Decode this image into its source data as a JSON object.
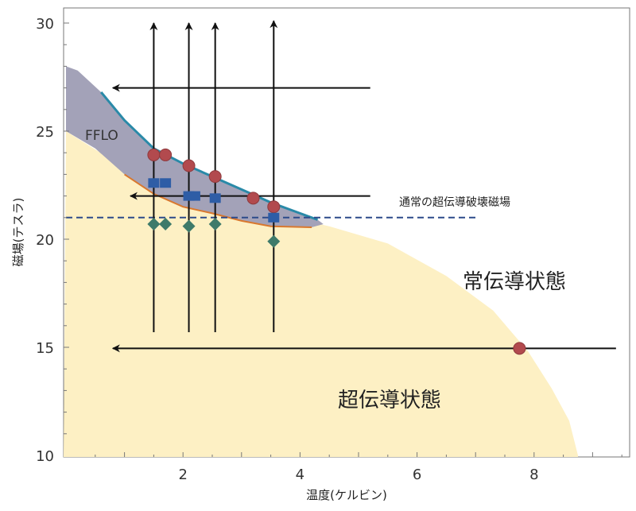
{
  "chart_data": {
    "type": "scatter",
    "xlabel": "温度(ケルビン)",
    "ylabel": "磁場(テスラ)",
    "xlim": [
      0,
      9.5
    ],
    "ylim": [
      10,
      30.5
    ],
    "xticks": [
      2,
      4,
      6,
      8
    ],
    "yticks": [
      10,
      15,
      20,
      25,
      30
    ],
    "colors": {
      "superconducting": "#fdf0c4",
      "ffl_region": "#a3a2b8",
      "upper_boundary": "#2a8aa8",
      "lower_boundary": "#d9782e",
      "circle": "#b24a4e",
      "square": "#2e5da6",
      "diamond": "#3e7a6a",
      "arrow": "#111111",
      "dashed": "#2c4a8a"
    },
    "superconducting_boundary": [
      [
        0,
        25
      ],
      [
        1,
        23.3
      ],
      [
        2,
        22.1
      ],
      [
        3,
        21.4
      ],
      [
        4,
        20.9
      ],
      [
        4.5,
        20.6
      ],
      [
        5.5,
        19.8
      ],
      [
        6.5,
        18.3
      ],
      [
        7.3,
        16.7
      ],
      [
        7.9,
        14.8
      ],
      [
        8.3,
        13.1
      ],
      [
        8.6,
        11.6
      ],
      [
        8.75,
        10
      ]
    ],
    "ffl_region": {
      "upper": [
        [
          0,
          28.0
        ],
        [
          0.2,
          27.8
        ],
        [
          0.6,
          26.8
        ],
        [
          1,
          25.5
        ],
        [
          1.5,
          24.2
        ],
        [
          2,
          23.5
        ],
        [
          2.5,
          22.9
        ],
        [
          3,
          22.3
        ],
        [
          3.5,
          21.7
        ],
        [
          4,
          21.2
        ],
        [
          4.3,
          20.9
        ]
      ],
      "lower": [
        [
          4.4,
          20.7
        ],
        [
          4.2,
          20.55
        ],
        [
          3.5,
          20.6
        ],
        [
          3,
          20.85
        ],
        [
          2.5,
          21.2
        ],
        [
          2,
          21.5
        ],
        [
          1.5,
          22.1
        ],
        [
          1,
          23.0
        ],
        [
          0.5,
          24.2
        ],
        [
          0,
          25
        ]
      ]
    },
    "reference_line": {
      "y": 21,
      "x_range": [
        0,
        7.05
      ],
      "label": "通常の超伝導破壊磁場"
    },
    "circles": [
      [
        1.5,
        23.9
      ],
      [
        1.7,
        23.9
      ],
      [
        2.1,
        23.4
      ],
      [
        2.55,
        22.9
      ],
      [
        3.2,
        21.9
      ],
      [
        3.55,
        21.5
      ],
      [
        7.75,
        14.95
      ]
    ],
    "squares": [
      [
        1.5,
        22.6
      ],
      [
        1.7,
        22.6
      ],
      [
        2.1,
        22.0
      ],
      [
        2.2,
        22.0
      ],
      [
        2.55,
        21.9
      ],
      [
        3.55,
        21.0
      ]
    ],
    "diamonds": [
      [
        1.5,
        20.7
      ],
      [
        1.7,
        20.7
      ],
      [
        2.1,
        20.6
      ],
      [
        2.55,
        20.7
      ],
      [
        3.55,
        19.9
      ]
    ],
    "vertical_arrows": [
      {
        "x": 1.5,
        "from": 15.7,
        "to": 30.0
      },
      {
        "x": 2.1,
        "from": 15.7,
        "to": 30.0
      },
      {
        "x": 2.55,
        "from": 15.7,
        "to": 30.0
      },
      {
        "x": 3.55,
        "from": 15.7,
        "to": 30.1
      }
    ],
    "horizontal_arrows": [
      {
        "y": 27.0,
        "from": 5.2,
        "to": 0.8
      },
      {
        "y": 22.0,
        "from": 5.2,
        "to": 1.1
      },
      {
        "y": 14.95,
        "from": 9.4,
        "to": 0.8
      }
    ],
    "labels": {
      "ffl": "FFLO",
      "normal_state": "常伝導状態",
      "superconducting_state": "超伝導状態"
    }
  }
}
